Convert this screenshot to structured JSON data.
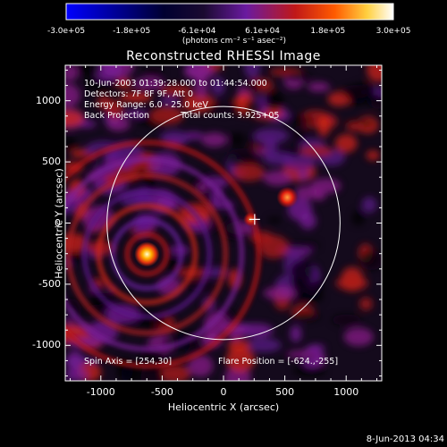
{
  "colorbar": {
    "tick_labels": [
      "-3.0e+05",
      "-1.8e+05",
      "-6.1e+04",
      "6.1e+04",
      "1.8e+05",
      "3.0e+05"
    ],
    "units_label": "(photons cm⁻² s⁻¹ asec⁻²)",
    "range": [
      -300000,
      300000
    ],
    "colors": [
      "#0000ff",
      "#000000",
      "#6a1aa0",
      "#c01818",
      "#ff7a00",
      "#ffffff"
    ]
  },
  "title": "Reconstructed RHESSI Image",
  "annotations": {
    "time_range": "10-Jun-2003 01:39:28.000 to 01:44:54.000",
    "detectors": "Detectors: 7F 8F 9F, Att 0",
    "energy_range": "Energy Range: 6.0 - 25.0 keV",
    "method": "Back Projection",
    "total_counts": "Total counts: 3.925+05",
    "spin_axis": "Spin Axis = [254,30]",
    "flare_position": "Flare Position = [-624.,-255]"
  },
  "xlabel": "Heliocentric X (arcsec)",
  "ylabel": "Heliocentric Y (arcsec)",
  "x_ticks": [
    "-1000",
    "-500",
    "0",
    "500",
    "1000"
  ],
  "y_ticks": [
    "1000",
    "500",
    "0",
    "-500",
    "-1000"
  ],
  "footer_date": "8-Jun-2013 04:34",
  "chart_data": {
    "type": "heatmap",
    "xlim": [
      -1290,
      1290
    ],
    "ylim": [
      -1290,
      1290
    ],
    "solar_limb_radius": 950,
    "spin_axis": [
      254,
      30
    ],
    "flare_position": [
      -624,
      -255
    ],
    "secondary_source": [
      520,
      210
    ]
  }
}
